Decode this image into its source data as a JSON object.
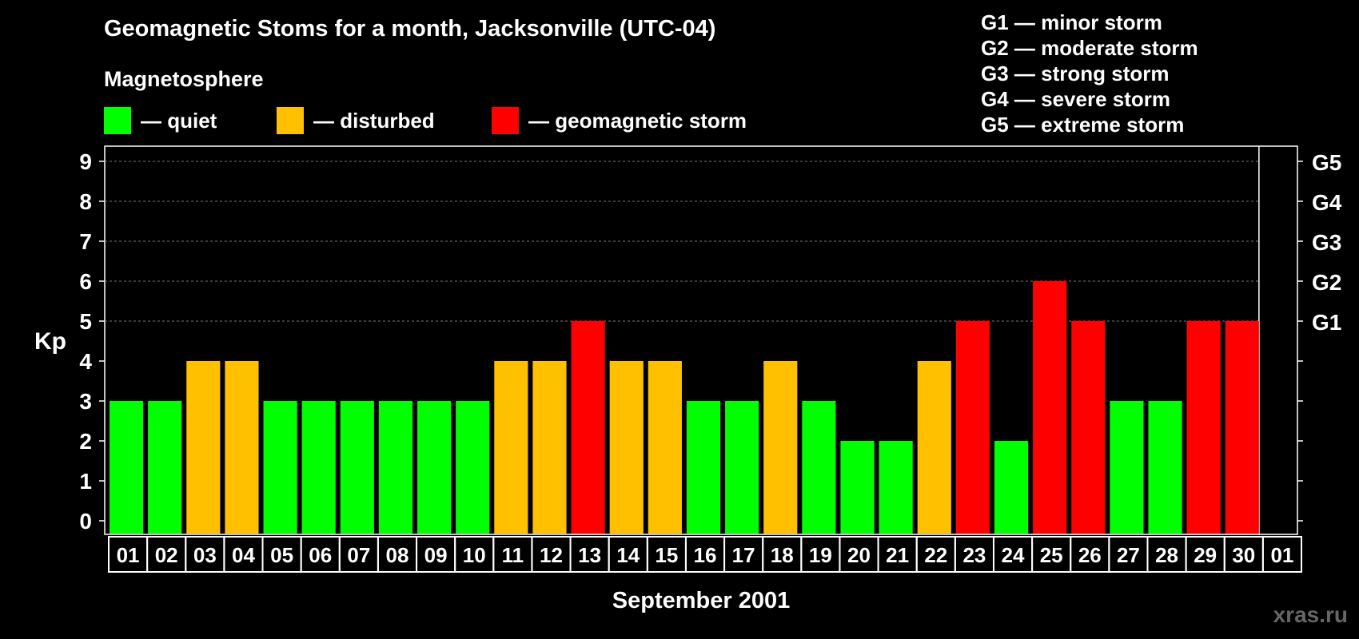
{
  "header": {
    "title": "Geomagnetic Stoms for a month, Jacksonville (UTC-04)",
    "magnetosphere_label": "Magnetosphere"
  },
  "legend": [
    {
      "label": "— quiet",
      "color": "#00ff00"
    },
    {
      "label": "— disturbed",
      "color": "#ffc000"
    },
    {
      "label": "— geomagnetic storm",
      "color": "#ff0000"
    }
  ],
  "storm_scale": [
    "G1 — minor storm",
    "G2 — moderate storm",
    "G3 — strong storm",
    "G4 — severe storm",
    "G5 — extreme storm"
  ],
  "watermark": "xras.ru",
  "chart_data": {
    "type": "bar",
    "title": "Geomagnetic Stoms for a month, Jacksonville (UTC-04)",
    "xlabel": "September 2001",
    "ylabel": "Kp",
    "ylim": [
      0,
      9
    ],
    "yticks": [
      0,
      1,
      2,
      3,
      4,
      5,
      6,
      7,
      8,
      9
    ],
    "right_axis_labels": [
      {
        "kp": 5,
        "label": "G1"
      },
      {
        "kp": 6,
        "label": "G2"
      },
      {
        "kp": 7,
        "label": "G3"
      },
      {
        "kp": 8,
        "label": "G4"
      },
      {
        "kp": 9,
        "label": "G5"
      }
    ],
    "grid": true,
    "categories": [
      "01",
      "02",
      "03",
      "04",
      "05",
      "06",
      "07",
      "08",
      "09",
      "10",
      "11",
      "12",
      "13",
      "14",
      "15",
      "16",
      "17",
      "18",
      "19",
      "20",
      "21",
      "22",
      "23",
      "24",
      "25",
      "26",
      "27",
      "28",
      "29",
      "30",
      "01"
    ],
    "values": [
      3,
      3,
      4,
      4,
      3,
      3,
      3,
      3,
      3,
      3,
      4,
      4,
      5,
      4,
      4,
      3,
      3,
      4,
      3,
      2,
      2,
      4,
      5,
      2,
      6,
      5,
      3,
      3,
      5,
      5,
      null
    ],
    "colors": {
      "quiet": "#00ff00",
      "disturbed": "#ffc000",
      "storm": "#ff0000"
    }
  }
}
